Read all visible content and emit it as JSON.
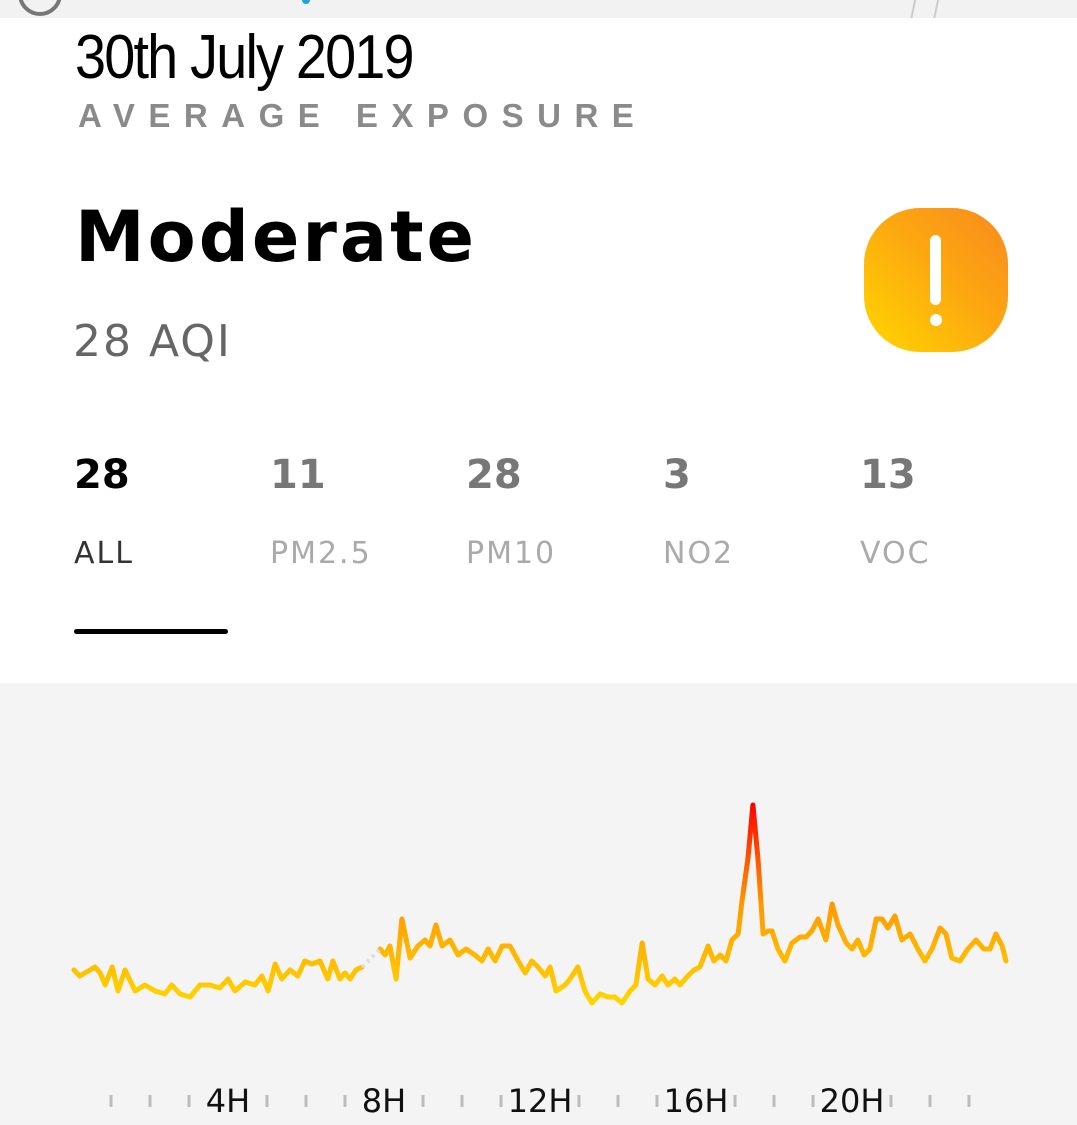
{
  "header": {
    "date": "30th July 2019",
    "subtitle": "AVERAGE EXPOSURE",
    "level": "Moderate",
    "aqi": "28 AQI",
    "status_icon": "exclamation-icon",
    "status_colors": [
      "#FFD600",
      "#F98A1E"
    ]
  },
  "tabs": [
    {
      "value": "28",
      "label": "ALL",
      "active": true
    },
    {
      "value": "11",
      "label": "PM2.5",
      "active": false
    },
    {
      "value": "28",
      "label": "PM10",
      "active": false
    },
    {
      "value": "3",
      "label": "NO2",
      "active": false
    },
    {
      "value": "13",
      "label": "VOC",
      "active": false
    }
  ],
  "chart_data": {
    "type": "line",
    "xlabel": "",
    "ylabel": "",
    "xlim": [
      0,
      24
    ],
    "x_tick_labels": {
      "4": "4H",
      "8": "8H",
      "12": "12H",
      "16": "16H",
      "20": "20H"
    },
    "grid": false,
    "color_scale": [
      "#FFD600",
      "#FF9800",
      "#FF0000"
    ],
    "missing_data_color": "#DDDDDD",
    "series": [
      {
        "x": [
          0.05,
          0.2,
          0.59,
          0.72,
          0.85,
          1.03,
          1.18,
          1.36,
          1.62,
          1.87,
          2.13,
          2.38,
          2.56,
          2.77,
          3.03,
          3.28,
          3.54,
          3.79,
          4.0,
          4.18,
          4.44,
          4.69,
          4.87,
          5.03,
          5.21,
          5.38,
          5.59,
          5.79,
          5.97,
          6.15,
          6.36,
          6.56,
          6.69,
          6.87,
          7.0,
          7.13,
          7.28,
          7.44
        ],
        "y": [
          30,
          28,
          31,
          29,
          25,
          31,
          23,
          30,
          23,
          25,
          23,
          22,
          25,
          22,
          21,
          25,
          25,
          24,
          27,
          23,
          26,
          25,
          28,
          23,
          32,
          27,
          30,
          28,
          33,
          32,
          33,
          27,
          33,
          27,
          29,
          27,
          30,
          31
        ]
      },
      {
        "x": [
          7.9,
          8.03,
          8.15,
          8.31,
          8.46,
          8.67,
          8.87,
          9.05,
          9.18,
          9.33,
          9.49,
          9.69,
          9.9,
          10.1,
          10.33,
          10.51,
          10.67,
          10.85,
          11.03,
          11.23,
          11.44,
          11.62,
          11.79,
          11.95,
          12.13,
          12.26,
          12.41,
          12.64,
          12.77,
          12.97,
          13.15,
          13.33,
          13.54,
          13.74,
          13.92,
          14.1,
          14.31,
          14.46,
          14.62,
          14.77,
          14.95,
          15.13,
          15.28,
          15.46,
          15.59,
          15.79,
          15.95,
          16.1,
          16.31,
          16.46,
          16.62,
          16.77,
          16.92,
          17.08,
          17.18,
          17.33,
          17.46,
          17.59,
          17.72,
          17.85,
          17.95,
          18.1,
          18.28,
          18.46,
          18.67,
          18.82,
          18.97,
          19.13,
          19.33,
          19.49,
          19.64,
          19.85,
          20.0,
          20.15,
          20.31,
          20.46,
          20.62,
          20.77,
          20.92,
          21.1,
          21.28,
          21.49,
          21.69,
          21.87,
          22.05,
          22.26,
          22.41,
          22.56,
          22.77,
          22.97,
          23.18,
          23.38,
          23.54,
          23.69,
          23.85,
          23.95
        ],
        "y": [
          37,
          35,
          38,
          27,
          47,
          34,
          38,
          40,
          38,
          45,
          38,
          40,
          35,
          37,
          35,
          33,
          37,
          33,
          38,
          38,
          33,
          29,
          33,
          31,
          28,
          31,
          23,
          25,
          27,
          31,
          23,
          19,
          22,
          21,
          21,
          19,
          23,
          25,
          39,
          27,
          25,
          28,
          25,
          27,
          25,
          28,
          30,
          31,
          38,
          33,
          35,
          33,
          40,
          42,
          53,
          67,
          85,
          67,
          42,
          43,
          43,
          37,
          33,
          39,
          41,
          41,
          43,
          47,
          40,
          52,
          45,
          39,
          37,
          40,
          35,
          37,
          47,
          47,
          44,
          48,
          40,
          42,
          37,
          33,
          37,
          44,
          42,
          34,
          33,
          37,
          40,
          37,
          37,
          42,
          38,
          33
        ]
      }
    ]
  }
}
